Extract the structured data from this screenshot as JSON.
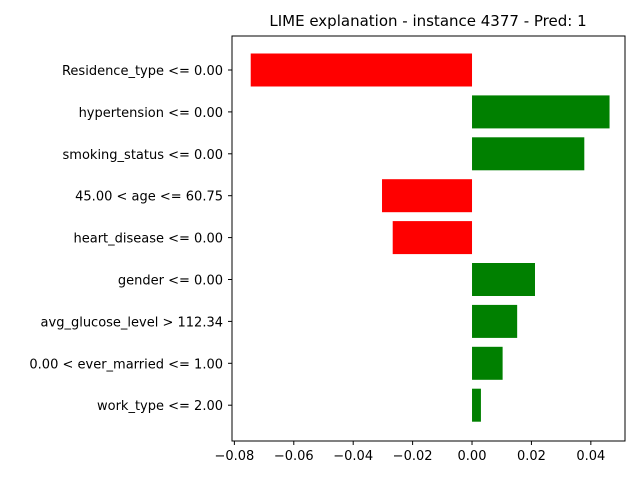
{
  "chart_data": {
    "type": "bar",
    "orientation": "horizontal",
    "title": "LIME explanation - instance 4377 - Pred: 1",
    "xlabel": "",
    "ylabel": "",
    "categories": [
      "Residence_type <= 0.00",
      "hypertension <= 0.00",
      "smoking_status <= 0.00",
      "45.00 < age <= 60.75",
      "heart_disease <= 0.00",
      "gender <= 0.00",
      "avg_glucose_level > 112.34",
      "0.00 < ever_married <= 1.00",
      "work_type <= 2.00"
    ],
    "values": [
      -0.0745,
      0.0463,
      0.0378,
      -0.0303,
      -0.0267,
      0.0212,
      0.0152,
      0.0103,
      0.003
    ],
    "xlim": [
      -0.0808,
      0.0515
    ],
    "xticks": [
      -0.08,
      -0.06,
      -0.04,
      -0.02,
      0.0,
      0.02,
      0.04
    ],
    "xtick_labels": [
      "−0.08",
      "−0.06",
      "−0.04",
      "−0.02",
      "0.00",
      "0.02",
      "0.04"
    ],
    "grid": false,
    "colors": {
      "positive": "#008000",
      "negative": "#ff0000",
      "axis": "#000000"
    }
  }
}
